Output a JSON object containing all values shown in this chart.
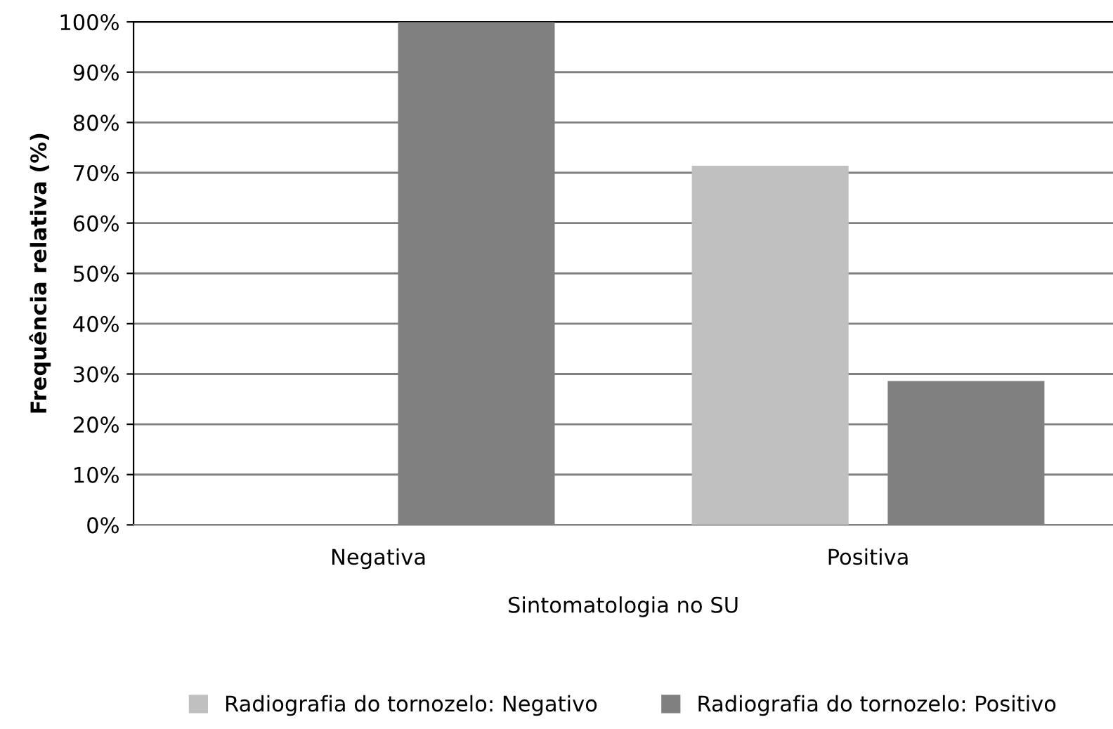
{
  "chart_data": {
    "type": "bar",
    "xlabel": "Sintomatologia no SU",
    "ylabel": "Frequência relativa (%)",
    "categories": [
      "Negativa",
      "Positiva"
    ],
    "series": [
      {
        "name": "Radiografia do tornozelo: Negativo",
        "color": "#c0c0c0",
        "values": [
          0,
          71.4
        ]
      },
      {
        "name": "Radiografia do tornozelo: Positivo",
        "color": "#808080",
        "values": [
          100,
          28.6
        ]
      }
    ],
    "ylim": [
      0,
      100
    ],
    "yticks": [
      {
        "value": 0,
        "label": "0%"
      },
      {
        "value": 10,
        "label": "10%"
      },
      {
        "value": 20,
        "label": "20%"
      },
      {
        "value": 30,
        "label": "30%"
      },
      {
        "value": 40,
        "label": "40%"
      },
      {
        "value": 50,
        "label": "50%"
      },
      {
        "value": 60,
        "label": "60%"
      },
      {
        "value": 70,
        "label": "70%"
      },
      {
        "value": 80,
        "label": "80%"
      },
      {
        "value": 90,
        "label": "90%"
      },
      {
        "value": 100,
        "label": "100%"
      }
    ],
    "grid": "y",
    "legend": "bottom"
  }
}
